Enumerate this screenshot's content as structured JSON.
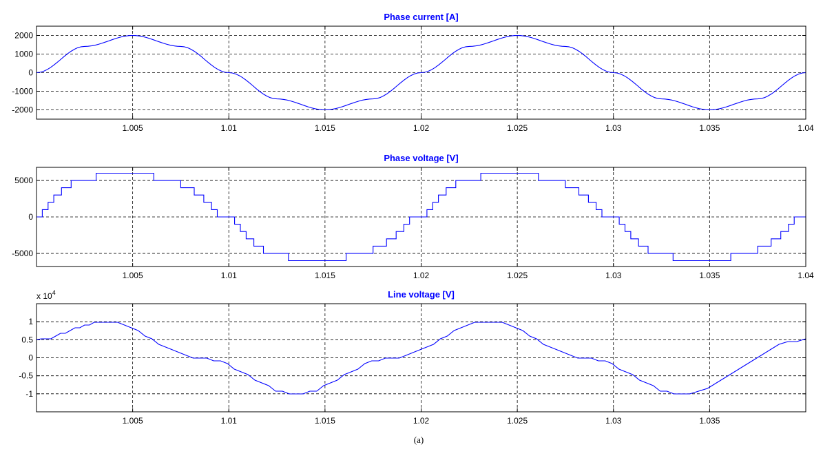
{
  "figure_caption": "(a)",
  "colors": {
    "trace": "#0000ff",
    "title": "#0000ff",
    "grid": "#000000"
  },
  "chart_data": [
    {
      "type": "line",
      "title": "Phase current [A]",
      "xlabel": "",
      "ylabel": "",
      "xlim": [
        1.0,
        1.04
      ],
      "ylim": [
        -2500,
        2500
      ],
      "grid": true,
      "x_ticks": [
        1.005,
        1.01,
        1.015,
        1.02,
        1.025,
        1.03,
        1.035,
        1.04
      ],
      "x_tick_labels": [
        "1.005",
        "1.01",
        "1.015",
        "1.02",
        "1.025",
        "1.03",
        "1.035",
        "1.04"
      ],
      "y_ticks": [
        2000,
        1000,
        0,
        -1000,
        -2000
      ],
      "y_tick_labels": [
        "2000",
        "1000",
        "0",
        "-1000",
        "-2000"
      ],
      "y_exponent_label": "",
      "series": [
        {
          "x": [
            1.0,
            1.0025,
            1.005,
            1.0075,
            1.01,
            1.0125,
            1.015,
            1.0175,
            1.02,
            1.0225,
            1.025,
            1.0275,
            1.03,
            1.0325,
            1.035,
            1.0375,
            1.04
          ],
          "y": [
            0,
            1410,
            2000,
            1410,
            0,
            -1410,
            -2000,
            -1410,
            0,
            1410,
            2000,
            1410,
            0,
            -1410,
            -2000,
            -1410,
            0
          ]
        }
      ]
    },
    {
      "type": "line",
      "title": "Phase voltage [V]",
      "xlabel": "",
      "ylabel": "",
      "xlim": [
        1.0,
        1.04
      ],
      "ylim": [
        -6800,
        6800
      ],
      "grid": true,
      "x_ticks": [
        1.005,
        1.01,
        1.015,
        1.02,
        1.025,
        1.03,
        1.035,
        1.04
      ],
      "x_tick_labels": [
        "1.005",
        "1.01",
        "1.015",
        "1.02",
        "1.025",
        "1.03",
        "1.035",
        "1.04"
      ],
      "y_ticks": [
        5000,
        0,
        -5000
      ],
      "y_tick_labels": [
        "5000",
        "0",
        "-5000"
      ],
      "y_exponent_label": "",
      "series": [
        {
          "step": true,
          "x": [
            1.0,
            1.0003,
            1.0006,
            1.0009,
            1.0013,
            1.0018,
            1.0025,
            1.0031,
            1.0039,
            1.0061,
            1.0069,
            1.0075,
            1.0082,
            1.0087,
            1.0091,
            1.0094,
            1.0097,
            1.01,
            1.0103,
            1.0106,
            1.0109,
            1.0113,
            1.0118,
            1.0125,
            1.0131,
            1.0139,
            1.0161,
            1.0169,
            1.0175,
            1.0182,
            1.0187,
            1.0191,
            1.0194,
            1.0197,
            1.02,
            1.0203,
            1.0206,
            1.0209,
            1.0213,
            1.0218,
            1.0225,
            1.0231,
            1.0239,
            1.0261,
            1.0269,
            1.0275,
            1.0282,
            1.0287,
            1.0291,
            1.0294,
            1.0297,
            1.03,
            1.0303,
            1.0306,
            1.0309,
            1.0313,
            1.0318,
            1.0325,
            1.0331,
            1.0339,
            1.0361,
            1.0369,
            1.0375,
            1.0382,
            1.0387,
            1.0391,
            1.0394,
            1.0397,
            1.04
          ],
          "y": [
            0,
            1000,
            2000,
            3000,
            4000,
            5000,
            5000,
            6000,
            6000,
            5000,
            5000,
            4000,
            3000,
            2000,
            1000,
            0,
            0,
            0,
            -1000,
            -2000,
            -3000,
            -4000,
            -5000,
            -5000,
            -6000,
            -6000,
            -5000,
            -5000,
            -4000,
            -3000,
            -2000,
            -1000,
            0,
            0,
            0,
            1000,
            2000,
            3000,
            4000,
            5000,
            5000,
            6000,
            6000,
            5000,
            5000,
            4000,
            3000,
            2000,
            1000,
            0,
            0,
            0,
            -1000,
            -2000,
            -3000,
            -4000,
            -5000,
            -5000,
            -6000,
            -6000,
            -5000,
            -5000,
            -4000,
            -3000,
            -2000,
            -1000,
            0,
            0,
            0
          ]
        }
      ]
    },
    {
      "type": "line",
      "title": "Line voltage [V]",
      "xlabel": "",
      "ylabel": "",
      "xlim": [
        1.0,
        1.04
      ],
      "ylim": [
        -1.5,
        1.5
      ],
      "grid": true,
      "x_ticks": [
        1.005,
        1.01,
        1.015,
        1.02,
        1.025,
        1.03,
        1.035
      ],
      "x_tick_labels": [
        "1.005",
        "1.01",
        "1.015",
        "1.02",
        "1.025",
        "1.03",
        "1.035"
      ],
      "y_ticks": [
        1,
        0.5,
        0,
        -0.5,
        -1
      ],
      "y_tick_labels": [
        "1",
        "0.5",
        "0",
        "-0.5",
        "-1"
      ],
      "y_exponent_label": "x 10",
      "y_exponent_power": "4",
      "series": [
        {
          "x": [
            1.0,
            1.0035,
            1.0085,
            1.0135,
            1.0185,
            1.0235,
            1.0285,
            1.0335,
            1.04
          ],
          "y": [
            0.5,
            1.0,
            0.0,
            -1.0,
            0.0,
            1.0,
            0.0,
            -1.0,
            0.5
          ]
        }
      ]
    }
  ]
}
